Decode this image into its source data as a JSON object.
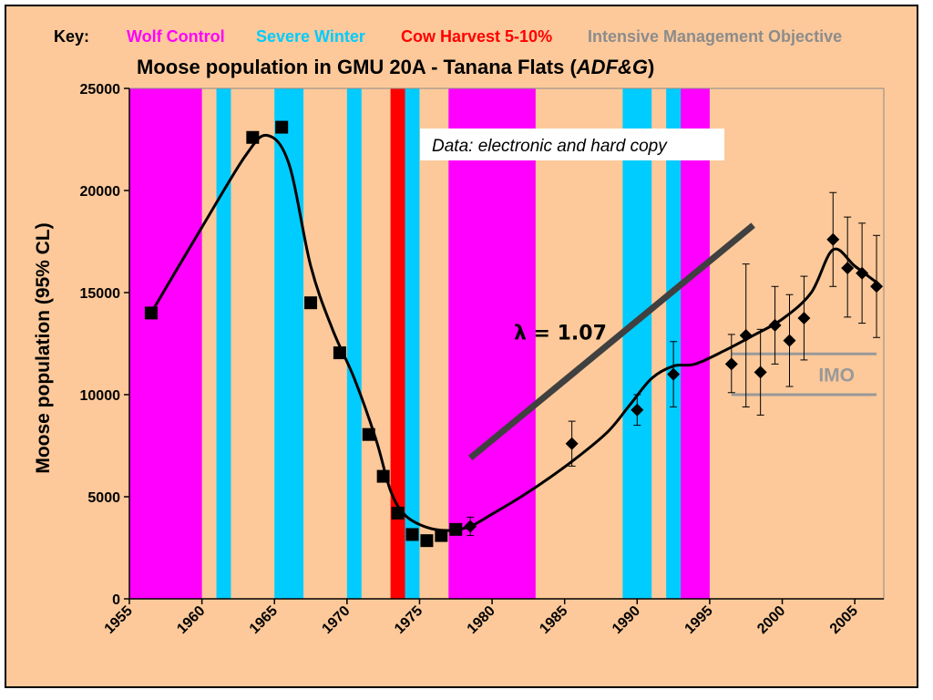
{
  "key": {
    "label": "Key:",
    "items": [
      {
        "text": "Wolf Control",
        "color": "#ff00ff"
      },
      {
        "text": "Severe Winter",
        "color": "#00ccff"
      },
      {
        "text": "Cow Harvest 5-10%",
        "color": "#ff0000"
      },
      {
        "text": "Intensive Management Objective",
        "color": "#8c8c8c"
      }
    ]
  },
  "colors": {
    "background": "#fdc99a",
    "wolf": "#ff00ff",
    "winter": "#00ccff",
    "harvest": "#ff0000",
    "imo": "#999999",
    "trend": "#404040"
  },
  "chart_data": {
    "type": "scatter",
    "title": "Moose population in GMU 20A - Tanana Flats (",
    "title_italic": "ADF&G",
    "title_end": ")",
    "xlabel": "",
    "ylabel": "Moose population (95% CL)",
    "xlim": [
      1955,
      2007
    ],
    "ylim": [
      0,
      25000
    ],
    "x_ticks": [
      1955,
      1960,
      1965,
      1970,
      1975,
      1980,
      1985,
      1990,
      1995,
      2000,
      2005
    ],
    "y_ticks": [
      0,
      5000,
      10000,
      15000,
      20000,
      25000
    ],
    "grid": false,
    "bands": {
      "wolf_control": [
        [
          1955,
          1960
        ],
        [
          1977,
          1983
        ],
        [
          1993,
          1995
        ]
      ],
      "severe_winter": [
        [
          1961,
          1962
        ],
        [
          1965,
          1967
        ],
        [
          1970,
          1971
        ],
        [
          1974,
          1975
        ],
        [
          1989,
          1991
        ],
        [
          1992,
          1993
        ]
      ],
      "cow_harvest": [
        [
          1973,
          1974
        ]
      ]
    },
    "series": [
      {
        "marker": "square",
        "points": [
          [
            1956.5,
            14000
          ],
          [
            1963.5,
            22600
          ],
          [
            1965.5,
            23100
          ],
          [
            1967.5,
            14500
          ],
          [
            1969.5,
            12050
          ],
          [
            1971.5,
            8050
          ],
          [
            1972.5,
            6000
          ],
          [
            1973.5,
            4200
          ],
          [
            1974.5,
            3150
          ],
          [
            1975.5,
            2850
          ],
          [
            1976.5,
            3100
          ],
          [
            1977.5,
            3400
          ]
        ]
      },
      {
        "marker": "diamond",
        "points": [
          {
            "x": 1978.5,
            "y": 3550,
            "lo": 3100,
            "hi": 4000
          },
          {
            "x": 1985.5,
            "y": 7600,
            "lo": 6500,
            "hi": 8700
          },
          {
            "x": 1990.0,
            "y": 9250,
            "lo": 8500,
            "hi": 10000
          },
          {
            "x": 1992.5,
            "y": 11000,
            "lo": 9400,
            "hi": 12600
          },
          {
            "x": 1996.5,
            "y": 11500,
            "lo": 10100,
            "hi": 12950
          },
          {
            "x": 1997.5,
            "y": 12900,
            "lo": 9400,
            "hi": 16400
          },
          {
            "x": 1998.5,
            "y": 11100,
            "lo": 9000,
            "hi": 13200
          },
          {
            "x": 1999.5,
            "y": 13400,
            "lo": 11500,
            "hi": 15300
          },
          {
            "x": 2000.5,
            "y": 12650,
            "lo": 10400,
            "hi": 14900
          },
          {
            "x": 2001.5,
            "y": 13750,
            "lo": 11700,
            "hi": 15800
          },
          {
            "x": 2003.5,
            "y": 17600,
            "lo": 15300,
            "hi": 19900
          },
          {
            "x": 2004.5,
            "y": 16200,
            "lo": 13800,
            "hi": 18700
          },
          {
            "x": 2005.5,
            "y": 15950,
            "lo": 13500,
            "hi": 18400
          },
          {
            "x": 2006.5,
            "y": 15300,
            "lo": 12800,
            "hi": 17800
          }
        ]
      }
    ],
    "fit_curve": [
      [
        1956.5,
        14000
      ],
      [
        1960,
        18200
      ],
      [
        1963,
        21700
      ],
      [
        1964.5,
        22700
      ],
      [
        1966,
        21300
      ],
      [
        1967.5,
        16300
      ],
      [
        1969,
        13200
      ],
      [
        1970.5,
        10800
      ],
      [
        1972,
        7800
      ],
      [
        1973,
        5300
      ],
      [
        1974,
        4100
      ],
      [
        1975.5,
        3500
      ],
      [
        1977,
        3350
      ],
      [
        1978.5,
        3550
      ],
      [
        1980,
        4150
      ],
      [
        1982,
        5000
      ],
      [
        1984,
        5950
      ],
      [
        1986,
        7000
      ],
      [
        1988,
        8200
      ],
      [
        1989.5,
        9500
      ],
      [
        1991,
        10800
      ],
      [
        1992.5,
        11400
      ],
      [
        1994,
        11500
      ],
      [
        1996,
        12150
      ],
      [
        1998,
        12900
      ],
      [
        2000,
        13700
      ],
      [
        2002,
        15000
      ],
      [
        2003.5,
        17100
      ],
      [
        2005,
        16300
      ],
      [
        2006.5,
        15500
      ]
    ],
    "trend_line": {
      "label": "λ = 1.07",
      "from": [
        1978.5,
        6900
      ],
      "to": [
        1998,
        18300
      ]
    },
    "imo": {
      "label": "IMO",
      "range": [
        10000,
        12000
      ],
      "x_from": 1996.5,
      "x_to": 2006.5
    },
    "annotation": "Data: electronic and hard copy"
  }
}
